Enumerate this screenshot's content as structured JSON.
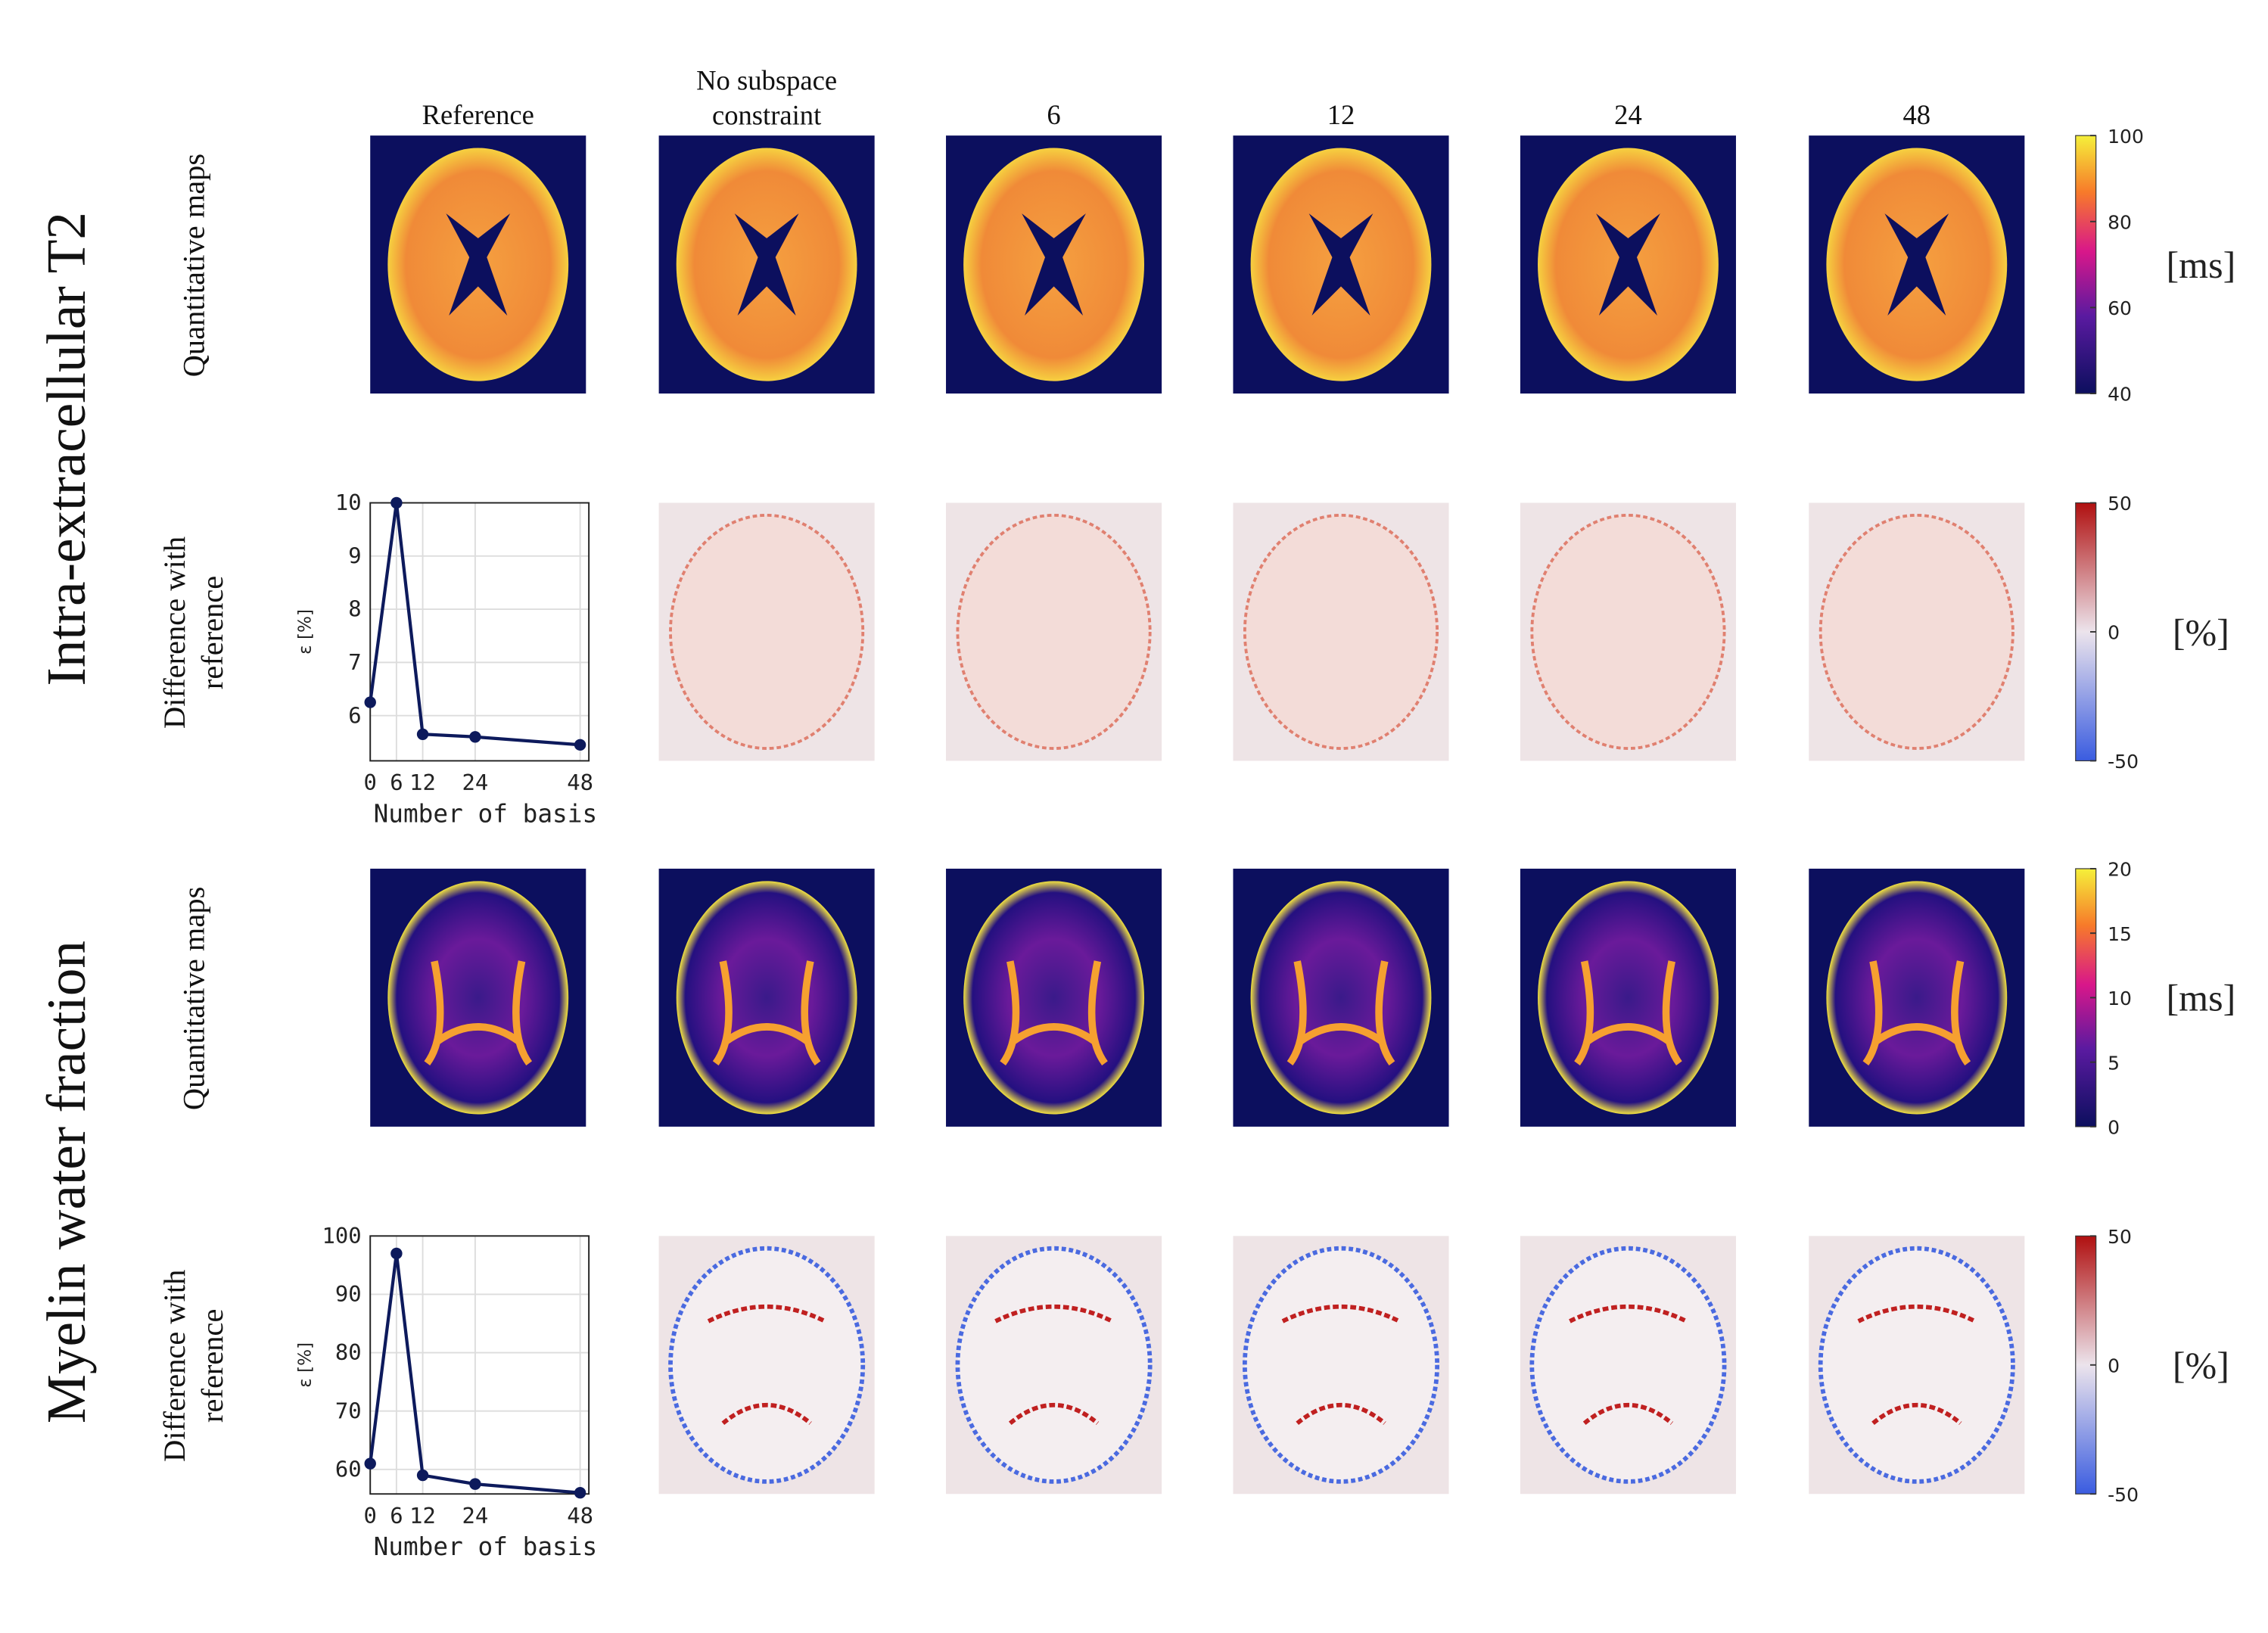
{
  "columns": [
    "Reference",
    "No subspace constraint",
    "6",
    "12",
    "24",
    "48"
  ],
  "sections": [
    {
      "title": "Intra-extracellular T2",
      "rows": [
        {
          "label": "Quantitative maps",
          "kind": "map",
          "colorbar": {
            "lim": [
              40,
              100
            ],
            "ticks": [
              40,
              60,
              80,
              100
            ],
            "unit": "[ms]",
            "colormap": "plasma"
          }
        },
        {
          "label": "Difference with reference",
          "kind": "diff",
          "colorbar": {
            "lim": [
              -50,
              50
            ],
            "ticks": [
              -50,
              0,
              50
            ],
            "unit": "[%]",
            "colormap": "diverging"
          },
          "chart": {
            "type": "line",
            "x": [
              0,
              6,
              12,
              24,
              48
            ],
            "values": [
              6.25,
              10,
              5.65,
              5.6,
              5.45
            ],
            "xlim": [
              0,
              50
            ],
            "ylim": [
              5.15,
              10
            ],
            "xticks": [
              0,
              6,
              12,
              24,
              48
            ],
            "yticks": [
              6,
              7,
              8,
              9,
              10
            ],
            "xlabel": "Number of basis",
            "ylabel": "ε [%]",
            "color": "#0d1a5c",
            "grid": true
          }
        }
      ]
    },
    {
      "title": "Myelin water fraction",
      "rows": [
        {
          "label": "Quantitative maps",
          "kind": "map",
          "colorbar": {
            "lim": [
              0,
              20
            ],
            "ticks": [
              0,
              5,
              10,
              15,
              20
            ],
            "unit": "[ms]",
            "colormap": "plasma"
          }
        },
        {
          "label": "Difference with reference",
          "kind": "diff",
          "colorbar": {
            "lim": [
              -50,
              50
            ],
            "ticks": [
              -50,
              0,
              50
            ],
            "unit": "[%]",
            "colormap": "diverging"
          },
          "chart": {
            "type": "line",
            "x": [
              0,
              6,
              12,
              24,
              48
            ],
            "values": [
              61,
              97,
              59,
              57.5,
              56
            ],
            "xlim": [
              0,
              50
            ],
            "ylim": [
              55.8,
              100
            ],
            "xticks": [
              0,
              6,
              12,
              24,
              48
            ],
            "yticks": [
              60,
              70,
              80,
              90,
              100
            ],
            "xlabel": "Number of basis",
            "ylabel": "ε [%]",
            "color": "#0d1a5c",
            "grid": true
          }
        }
      ]
    }
  ]
}
